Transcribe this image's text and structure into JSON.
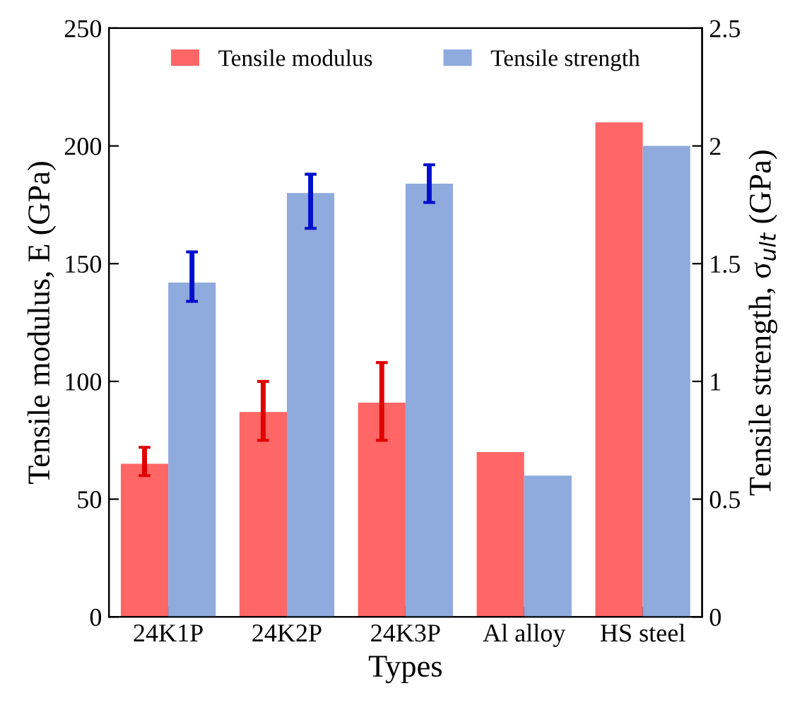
{
  "chart_data": {
    "type": "bar",
    "categories": [
      "24K1P",
      "24K2P",
      "24K3P",
      "Al alloy",
      "HS steel"
    ],
    "xlabel": "Types",
    "ylabel": "Tensile modulus, E (GPa)",
    "y2label": "Tensile strength, σ$_{ult}$ (GPa)",
    "series": [
      {
        "name": "Tensile modulus",
        "color": "#ff6666",
        "values": [
          65,
          87,
          91,
          70,
          210
        ],
        "errors": [
          [
            60,
            72
          ],
          [
            75,
            100
          ],
          [
            75,
            108
          ],
          null,
          null
        ],
        "axis": "y"
      },
      {
        "name": "Tensile strength",
        "color": "#8faadc",
        "values": [
          1.42,
          1.8,
          1.84,
          0.6,
          2.0
        ],
        "errors": [
          [
            1.34,
            1.55
          ],
          [
            1.65,
            1.88
          ],
          [
            1.76,
            1.92
          ],
          null,
          null
        ],
        "axis": "y2"
      }
    ],
    "ylim": [
      0,
      250
    ],
    "yticks": [
      0,
      50,
      100,
      150,
      200,
      250
    ],
    "y2lim": [
      0,
      2.5
    ],
    "y2ticks": [
      0,
      0.5,
      1,
      1.5,
      2,
      2.5
    ],
    "legend": "top",
    "grid": false
  }
}
